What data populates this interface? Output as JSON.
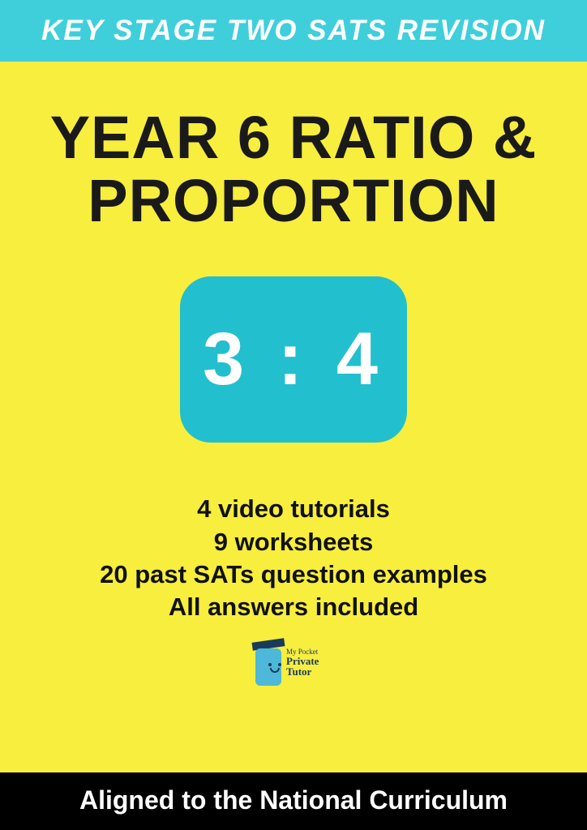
{
  "header": {
    "banner_text": "KEY STAGE TWO SATS REVISION",
    "banner_bg": "#3fcfdb",
    "banner_text_color": "#ffffff"
  },
  "title": {
    "line1": "YEAR 6 RATIO &",
    "line2": "PROPORTION",
    "color": "#1a1a1a"
  },
  "ratio_badge": {
    "text": "3 : 4",
    "bg": "#22bfce",
    "text_color": "#ffffff"
  },
  "features": {
    "items": [
      "4 video tutorials",
      "9 worksheets",
      "20 past SATs question examples",
      "All answers included"
    ],
    "color": "#111111"
  },
  "logo": {
    "line1": "My Pocket",
    "line2": "Private",
    "line3": "Tutor"
  },
  "footer": {
    "text": "Aligned  to the National  Curriculum",
    "bg": "#000000",
    "text_color": "#ffffff"
  },
  "page_bg": "#f7ee3e"
}
